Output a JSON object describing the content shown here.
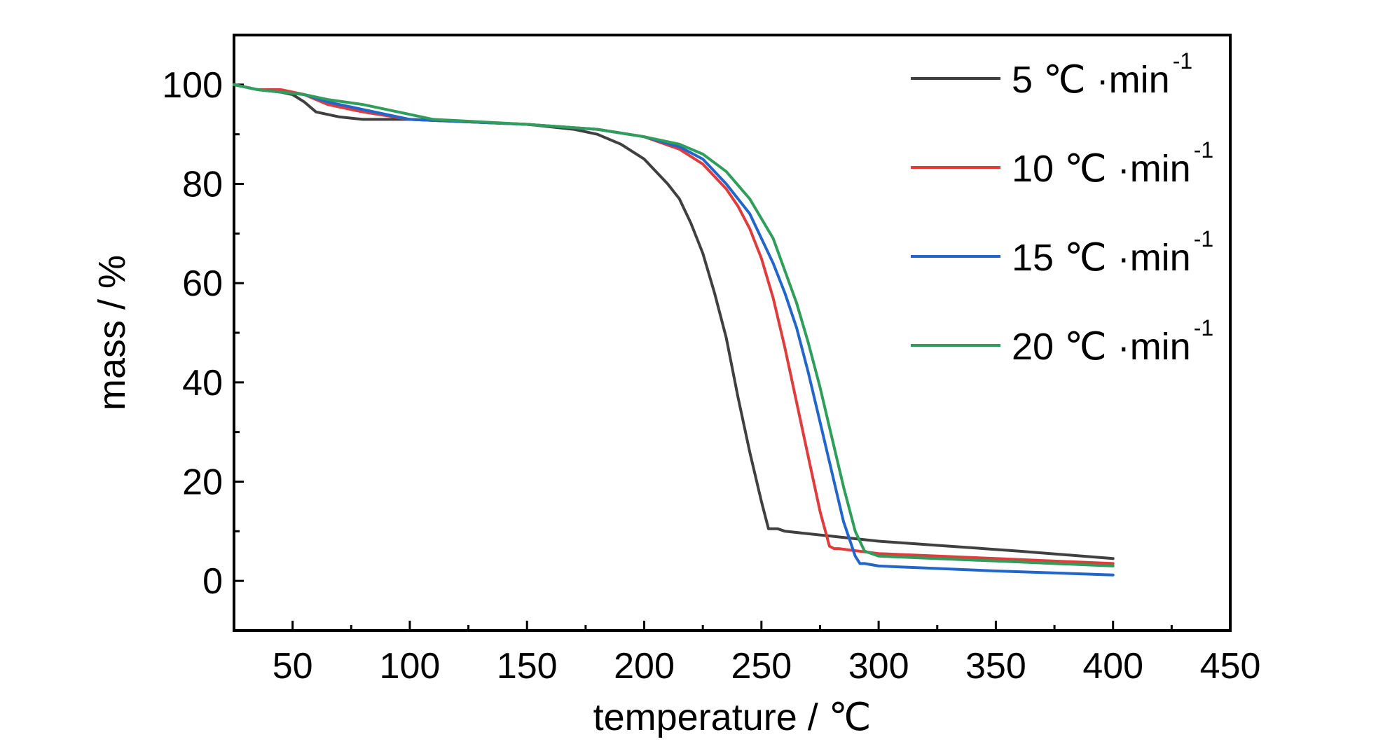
{
  "chart_data": {
    "type": "line",
    "xlabel": "temperature /  ℃",
    "ylabel": "mass / %",
    "xlim": [
      25,
      450
    ],
    "ylim": [
      -10,
      110
    ],
    "xticks": [
      50,
      100,
      150,
      200,
      250,
      300,
      350,
      400,
      450
    ],
    "yticks": [
      0,
      20,
      40,
      60,
      80,
      100
    ],
    "grid": false,
    "legend": "top-right",
    "series": [
      {
        "name": "5  ℃ ·min",
        "sup": "-1",
        "color": "#404040",
        "x": [
          25,
          35,
          45,
          50,
          55,
          60,
          70,
          80,
          100,
          150,
          170,
          180,
          190,
          200,
          210,
          215,
          220,
          225,
          230,
          235,
          240,
          245,
          250,
          253,
          256,
          257,
          260,
          280,
          300,
          330,
          360,
          400
        ],
        "y": [
          100,
          99,
          98.5,
          98,
          96.5,
          94.5,
          93.5,
          93,
          93,
          92,
          91,
          90,
          88,
          85,
          80,
          77,
          72,
          66,
          58,
          49,
          37,
          26,
          16,
          10.5,
          10.5,
          10.5,
          10,
          9,
          8,
          7,
          6,
          4.5
        ]
      },
      {
        "name": "10  ℃ ·min",
        "sup": "-1",
        "color": "#e03c3c",
        "x": [
          25,
          35,
          45,
          55,
          65,
          80,
          100,
          150,
          180,
          200,
          215,
          225,
          235,
          240,
          245,
          250,
          255,
          260,
          265,
          270,
          275,
          279,
          281,
          283,
          300,
          350,
          400
        ],
        "y": [
          100,
          99,
          99,
          98,
          96,
          94.5,
          93,
          92,
          91,
          89.5,
          87,
          84,
          79,
          75.5,
          71,
          65,
          57,
          47,
          36,
          25,
          14,
          7,
          6.5,
          6.5,
          5.5,
          4.5,
          3.5
        ]
      },
      {
        "name": "15  ℃ ·min",
        "sup": "-1",
        "color": "#2266cc",
        "x": [
          25,
          35,
          45,
          55,
          65,
          80,
          100,
          150,
          180,
          200,
          215,
          225,
          235,
          245,
          255,
          260,
          265,
          270,
          275,
          280,
          285,
          290,
          292,
          294,
          300,
          350,
          400
        ],
        "y": [
          100,
          99,
          98.5,
          98,
          96.5,
          95,
          93,
          92,
          91,
          89.5,
          87.5,
          85,
          80,
          74,
          64,
          58,
          51,
          42,
          32,
          22,
          12,
          5,
          3.5,
          3.5,
          3,
          2,
          1.2
        ]
      },
      {
        "name": "20  ℃ ·min",
        "sup": "-1",
        "color": "#2e9e5a",
        "x": [
          25,
          35,
          45,
          55,
          65,
          80,
          100,
          110,
          150,
          180,
          200,
          215,
          225,
          235,
          245,
          255,
          265,
          270,
          275,
          280,
          285,
          290,
          294,
          297,
          300,
          350,
          400
        ],
        "y": [
          100,
          99,
          98.5,
          98,
          97,
          96,
          94,
          93,
          92,
          91,
          89.5,
          88,
          86,
          82.5,
          77,
          69,
          56,
          48,
          39,
          29,
          19,
          10,
          6,
          5.5,
          5,
          4,
          3
        ]
      }
    ]
  }
}
